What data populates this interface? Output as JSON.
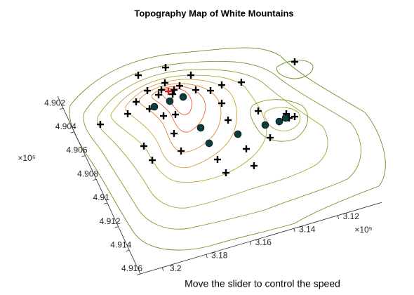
{
  "chart_data": {
    "type": "scatter",
    "title": "Topography Map of White Mountains",
    "caption": "Move the slider to control the speed",
    "x_exponent_label": "×10⁵",
    "y_exponent_label": "×10⁶",
    "xlim": [
      310000,
      321000
    ],
    "ylim": [
      4901000,
      4916000
    ],
    "xticks": [
      {
        "value": 312000,
        "label": "3.12"
      },
      {
        "value": 314000,
        "label": "3.14"
      },
      {
        "value": 316000,
        "label": "3.16"
      },
      {
        "value": 318000,
        "label": "3.18"
      },
      {
        "value": 320000,
        "label": "3.2"
      }
    ],
    "yticks": [
      {
        "value": 4902000,
        "label": "4.902"
      },
      {
        "value": 4904000,
        "label": "4.904"
      },
      {
        "value": 4906000,
        "label": "4.906"
      },
      {
        "value": 4908000,
        "label": "4.908"
      },
      {
        "value": 4910000,
        "label": "4.91"
      },
      {
        "value": 4912000,
        "label": "4.912"
      },
      {
        "value": 4914000,
        "label": "4.914"
      },
      {
        "value": 4916000,
        "label": "4.916"
      }
    ],
    "series": [
      {
        "marker": "plus",
        "color": "#000000",
        "x": [
          310858,
          317377,
          316137,
          315268,
          317300,
          316453,
          316218,
          315914,
          315347,
          314769,
          314214,
          313375,
          317959,
          317555,
          318519,
          314555,
          317124,
          316620,
          319813,
          317030,
          314616,
          318475,
          313237,
          313257,
          314422,
          317076,
          318400,
          314428,
          315772,
          315683,
          312131,
          312164,
          311880,
          316724,
          316352,
          316928
        ],
        "y": [
          4903648,
          4901196,
          4901224,
          4902354,
          4902543,
          4902355,
          4903078,
          4902889,
          4903557,
          4903933,
          4903763,
          4903986,
          4903130,
          4903946,
          4903832,
          4905119,
          4904776,
          4904934,
          4904012,
          4906311,
          4906509,
          4906586,
          4906495,
          4908739,
          4909048,
          4907770,
          4907814,
          4910470,
          4909198,
          4910374,
          4907696,
          4907322,
          4907715,
          4902800,
          4903360,
          4903103
        ]
      },
      {
        "marker": "dot",
        "color": "#0b3b3b",
        "x": [
          317320,
          316596,
          315984,
          315857,
          314484,
          315807,
          313218,
          312589,
          312271
        ],
        "y": [
          4903897,
          4903819,
          4903800,
          4906481,
          4907768,
          4907813,
          4907692,
          4907740,
          4907619
        ]
      },
      {
        "marker": "plus",
        "color": "#e8141c",
        "x": [
          316469
        ],
        "y": [
          4903059
        ]
      }
    ]
  }
}
